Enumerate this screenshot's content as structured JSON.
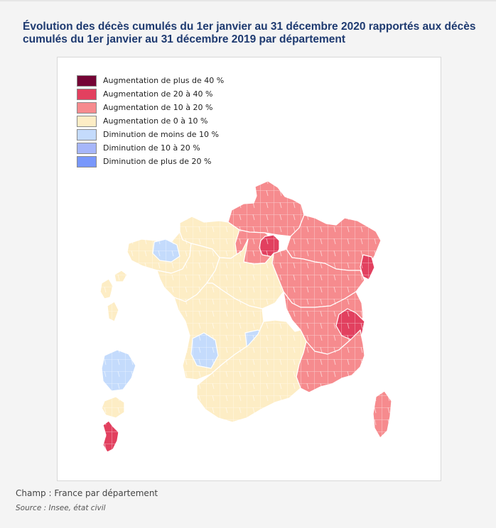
{
  "title": "Évolution des décès cumulés du 1er janvier au 31 décembre 2020 rapportés aux décès cumulés du 1er janvier au 31 décembre 2019 par département",
  "legend": [
    {
      "label": "Augmentation de plus de 40 %",
      "color": "#740435"
    },
    {
      "label": "Augmentation de 20 à 40 %",
      "color": "#e2405f"
    },
    {
      "label": "Augmentation de 10 à 20 %",
      "color": "#f68b8e"
    },
    {
      "label": "Augmentation de 0 à 10 %",
      "color": "#fdedc5"
    },
    {
      "label": "Diminution de moins de 10 %",
      "color": "#c4dbfc"
    },
    {
      "label": "Diminution de 10 à 20 %",
      "color": "#a6b6fa"
    },
    {
      "label": "Diminution de plus de 20 %",
      "color": "#7897fb"
    }
  ],
  "regions": [
    {
      "name": "Hauts-de-France",
      "class": 2
    },
    {
      "name": "Normandie",
      "class": 3
    },
    {
      "name": "Île-de-France",
      "class": 2
    },
    {
      "name": "Paris et petite couronne",
      "class": 1
    },
    {
      "name": "Grand Est",
      "class": 2
    },
    {
      "name": "Haut-Rhin",
      "class": 1
    },
    {
      "name": "Bourgogne-Franche-Comté",
      "class": 2
    },
    {
      "name": "Auvergne-Rhône-Alpes",
      "class": 2
    },
    {
      "name": "Rhône-Loire-Savoie",
      "class": 1
    },
    {
      "name": "Provence-Alpes-Côte d'Azur",
      "class": 2
    },
    {
      "name": "Corse",
      "class": 2
    },
    {
      "name": "Bretagne",
      "class": 3
    },
    {
      "name": "Ille-et-Vilaine",
      "class": 4
    },
    {
      "name": "Pays de la Loire",
      "class": 3
    },
    {
      "name": "Centre-Val de Loire",
      "class": 3
    },
    {
      "name": "Nouvelle-Aquitaine",
      "class": 3
    },
    {
      "name": "Gironde",
      "class": 4
    },
    {
      "name": "Cantal",
      "class": 4
    },
    {
      "name": "Occitanie",
      "class": 3
    },
    {
      "name": "Guadeloupe",
      "class": 3
    },
    {
      "name": "Martinique",
      "class": 3
    },
    {
      "name": "Guyane",
      "class": 4
    },
    {
      "name": "La Réunion",
      "class": 3
    },
    {
      "name": "Mayotte",
      "class": 1
    }
  ],
  "caption": "Champ : France par département",
  "source": "Source : Insee, état civil"
}
